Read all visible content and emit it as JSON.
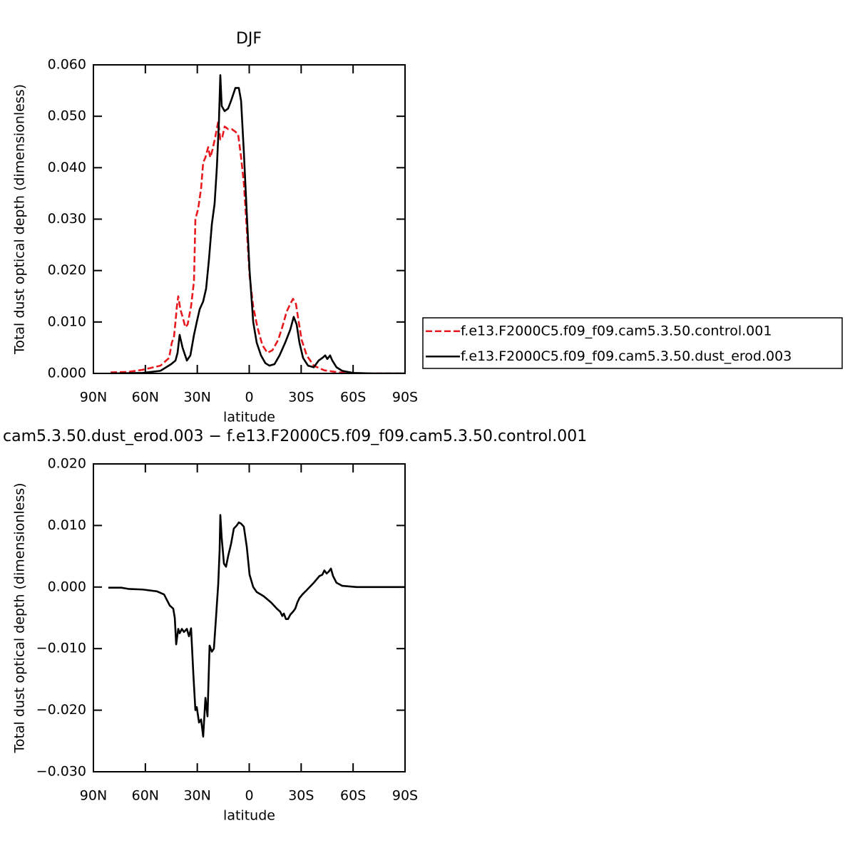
{
  "chart_data": [
    {
      "type": "line",
      "title": "DJF",
      "x_label": "latitude",
      "y_label": "Total dust optical depth (dimensionless)",
      "xlim": [
        90,
        -90
      ],
      "xticks": [
        {
          "value": 90,
          "label": "90N"
        },
        {
          "value": 60,
          "label": "60N"
        },
        {
          "value": 30,
          "label": "30N"
        },
        0,
        {
          "value": -30,
          "label": "30S"
        },
        {
          "value": -60,
          "label": "60S"
        },
        {
          "value": -90,
          "label": "90S"
        }
      ],
      "ylim": [
        0,
        0.06
      ],
      "yticks": [
        {
          "value": 0,
          "label": "0.000"
        },
        {
          "value": 0.01,
          "label": "0.010"
        },
        {
          "value": 0.02,
          "label": "0.020"
        },
        {
          "value": 0.03,
          "label": "0.030"
        },
        {
          "value": 0.04,
          "label": "0.040"
        },
        {
          "value": 0.05,
          "label": "0.050"
        },
        {
          "value": 0.06,
          "label": "0.060"
        }
      ],
      "legend": "right",
      "series": [
        {
          "name": "f.e13.F2000C5.f09_f09.cam5.3.50.control.001",
          "color": "#e8191e",
          "linestyle": "dashed",
          "x": [
            80.1,
            69.8,
            61.6,
            51.3,
            46.3,
            44.7,
            43.5,
            42.6,
            41.8,
            41.0,
            39.8,
            38.5,
            36.9,
            35.6,
            33.6,
            31.9,
            31.1,
            29.5,
            27.8,
            26.6,
            25.3,
            23.7,
            22.5,
            21.2,
            19.6,
            17.9,
            16.7,
            15.5,
            14.2,
            12.2,
            10.1,
            8.0,
            6.4,
            4.7,
            3.1,
            1.4,
            -0.2,
            -2.3,
            -4.7,
            -7.6,
            -10.5,
            -13.4,
            -16.7,
            -19.1,
            -21.6,
            -23.7,
            -25.3,
            -27.0,
            -28.6,
            -30.3,
            -33.2,
            -37.3,
            -43.4,
            -51.7,
            -62.0,
            -90
          ],
          "values": [
            0.0002,
            0.0003,
            0.0007,
            0.0015,
            0.003,
            0.006,
            0.007,
            0.01,
            0.013,
            0.015,
            0.0125,
            0.011,
            0.009,
            0.0095,
            0.013,
            0.018,
            0.03,
            0.032,
            0.036,
            0.041,
            0.042,
            0.044,
            0.042,
            0.0435,
            0.046,
            0.049,
            0.0455,
            0.046,
            0.048,
            0.0475,
            0.0475,
            0.047,
            0.0465,
            0.042,
            0.037,
            0.028,
            0.019,
            0.013,
            0.009,
            0.0055,
            0.004,
            0.0045,
            0.0065,
            0.009,
            0.012,
            0.0135,
            0.0145,
            0.0135,
            0.01,
            0.0065,
            0.0035,
            0.0015,
            0.0006,
            0.0002,
            0.0,
            0.0
          ]
        },
        {
          "name": "f.e13.F2000C5.f09_f09.cam5.3.50.dust_erod.003",
          "color": "#000000",
          "linestyle": "solid",
          "x": [
            80.1,
            61.6,
            51.3,
            45.1,
            42.6,
            41.4,
            40.2,
            38.5,
            36.0,
            34.0,
            31.9,
            30.3,
            28.6,
            26.6,
            24.9,
            23.3,
            21.6,
            20.0,
            18.7,
            17.5,
            16.7,
            15.9,
            14.2,
            12.2,
            10.5,
            8.0,
            6.0,
            4.7,
            3.1,
            1.4,
            -0.2,
            -2.3,
            -4.3,
            -6.8,
            -9.3,
            -11.7,
            -14.6,
            -17.5,
            -20.8,
            -23.7,
            -25.7,
            -27.4,
            -29.0,
            -31.1,
            -34.0,
            -37.3,
            -40.1,
            -42.2,
            -43.9,
            -45.1,
            -46.7,
            -48.0,
            -50.4,
            -53.7,
            -59.9,
            -70.2,
            -90
          ],
          "values": [
            0.0,
            0.0001,
            0.0005,
            0.0018,
            0.0025,
            0.004,
            0.0075,
            0.005,
            0.0025,
            0.0035,
            0.0075,
            0.01,
            0.0125,
            0.014,
            0.0165,
            0.022,
            0.029,
            0.033,
            0.04,
            0.049,
            0.058,
            0.052,
            0.051,
            0.0515,
            0.053,
            0.0555,
            0.0555,
            0.053,
            0.043,
            0.031,
            0.02,
            0.01,
            0.006,
            0.0035,
            0.002,
            0.0015,
            0.0018,
            0.0035,
            0.006,
            0.0085,
            0.011,
            0.0095,
            0.006,
            0.003,
            0.0015,
            0.0012,
            0.0025,
            0.003,
            0.0035,
            0.0028,
            0.0035,
            0.0025,
            0.0012,
            0.0005,
            0.0001,
            0.0,
            0.0
          ]
        }
      ]
    },
    {
      "type": "line",
      "title": "cam5.3.50.dust_erod.003 − f.e13.F2000C5.f09_f09.cam5.3.50.control.001",
      "x_label": "latitude",
      "y_label": "Total dust optical depth (dimensionless)",
      "xlim": [
        90,
        -90
      ],
      "xticks": [
        {
          "value": 90,
          "label": "90N"
        },
        {
          "value": 60,
          "label": "60N"
        },
        {
          "value": 30,
          "label": "30N"
        },
        0,
        {
          "value": -30,
          "label": "30S"
        },
        {
          "value": -60,
          "label": "60S"
        },
        {
          "value": -90,
          "label": "90S"
        }
      ],
      "ylim": [
        -0.03,
        0.02
      ],
      "yticks": [
        {
          "value": -0.03,
          "label": "−0.030"
        },
        {
          "value": -0.02,
          "label": "−0.020"
        },
        {
          "value": -0.01,
          "label": "−0.010"
        },
        {
          "value": 0,
          "label": "0.000"
        },
        {
          "value": 0.01,
          "label": "0.010"
        },
        {
          "value": 0.02,
          "label": "0.020"
        }
      ],
      "series": [
        {
          "color": "#000000",
          "linestyle": "solid",
          "x": [
            81.4,
            73.9,
            69.8,
            61.6,
            53.3,
            49.2,
            45.9,
            43.9,
            43.0,
            42.2,
            41.0,
            40.2,
            38.9,
            37.7,
            36.0,
            34.8,
            33.6,
            32.3,
            31.1,
            30.3,
            29.0,
            27.8,
            26.6,
            25.3,
            24.1,
            22.9,
            21.6,
            20.4,
            19.2,
            17.9,
            17.1,
            16.7,
            15.9,
            14.6,
            13.4,
            12.2,
            10.5,
            8.9,
            7.2,
            6.0,
            4.7,
            3.1,
            1.4,
            -0.2,
            -2.3,
            -4.3,
            -8.4,
            -12.6,
            -15.9,
            -17.9,
            -19.1,
            -20.0,
            -21.2,
            -22.4,
            -23.7,
            -25.3,
            -26.6,
            -27.8,
            -29.0,
            -30.7,
            -33.2,
            -37.3,
            -40.6,
            -42.2,
            -43.4,
            -44.7,
            -45.9,
            -47.2,
            -48.4,
            -50.4,
            -53.7,
            -62.0,
            -70.2,
            -90
          ],
          "values": [
            -0.0001,
            -0.0001,
            -0.0003,
            -0.0004,
            -0.0007,
            -0.0012,
            -0.003,
            -0.0035,
            -0.005,
            -0.0093,
            -0.0068,
            -0.0075,
            -0.0068,
            -0.0073,
            -0.0068,
            -0.008,
            -0.0067,
            -0.014,
            -0.02,
            -0.0195,
            -0.022,
            -0.0215,
            -0.0243,
            -0.018,
            -0.021,
            -0.0095,
            -0.0105,
            -0.01,
            -0.005,
            0.0005,
            0.006,
            0.0117,
            0.008,
            0.0038,
            0.0033,
            0.005,
            0.007,
            0.0095,
            0.01,
            0.0105,
            0.0103,
            0.0098,
            0.0065,
            0.002,
            0.0,
            -0.0008,
            -0.0015,
            -0.0025,
            -0.0035,
            -0.004,
            -0.0047,
            -0.0043,
            -0.0052,
            -0.0052,
            -0.0045,
            -0.004,
            -0.0035,
            -0.0025,
            -0.0018,
            -0.0012,
            -0.0005,
            0.0007,
            0.0018,
            0.002,
            0.0027,
            0.0022,
            0.0025,
            0.003,
            0.0018,
            0.0007,
            0.0002,
            0.0,
            0.0,
            0.0
          ]
        }
      ]
    }
  ]
}
